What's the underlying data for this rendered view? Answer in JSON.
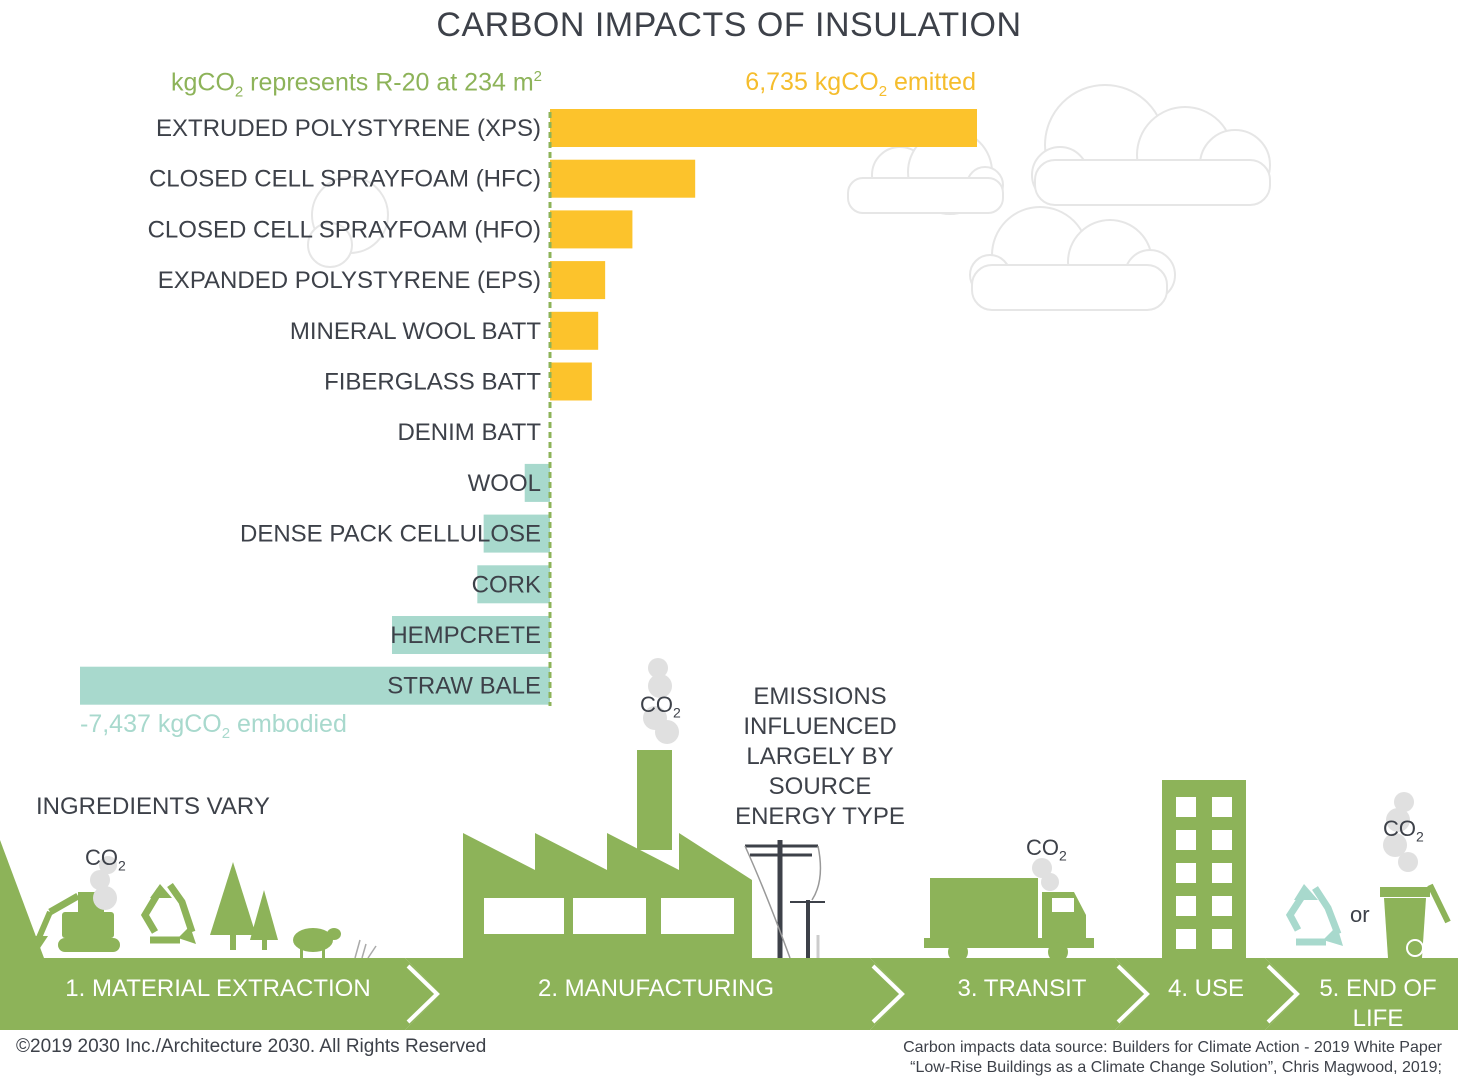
{
  "title": "CARBON IMPACTS OF INSULATION",
  "notes": {
    "left_prefix": "kgCO",
    "left_sub": "2",
    "left_mid": " represents R-20 at 234 m",
    "left_sup": "2",
    "right_prefix": "6,735 kgCO",
    "right_sub": "2",
    "right_suffix": " emitted",
    "bottom_prefix": "-7,437 kgCO",
    "bottom_sub": "2",
    "bottom_suffix": " embodied"
  },
  "colors": {
    "emitted": "#fcc32c",
    "embodied": "#a8d9cd",
    "green": "#8db359",
    "text": "#3d4149",
    "cloud": "#eeeeee"
  },
  "chart_data": {
    "type": "bar",
    "orientation": "horizontal",
    "categories": [
      "EXTRUDED POLYSTYRENE (XPS)",
      "CLOSED CELL SPRAYFOAM (HFC)",
      "CLOSED CELL SPRAYFOAM (HFO)",
      "EXPANDED POLYSTYRENE (EPS)",
      "MINERAL WOOL BATT",
      "FIBERGLASS BATT",
      "DENIM BATT",
      "WOOL",
      "DENSE PACK CELLULOSE",
      "CORK",
      "HEMPCRETE",
      "STRAW BALE"
    ],
    "values": [
      6735,
      2290,
      1300,
      870,
      760,
      660,
      0,
      -400,
      -1050,
      -1150,
      -2500,
      -7437
    ],
    "unit": "kgCO2",
    "xlim": [
      -7437,
      6735
    ],
    "grid": false,
    "legend": "none"
  },
  "lifecycle": {
    "ingredients": "INGREDIENTS VARY",
    "emissions": "EMISSIONS INFLUENCED LARGELY BY SOURCE ENERGY TYPE",
    "co2_main": "CO",
    "co2_sub": "2",
    "or": "or",
    "stages": [
      "1. MATERIAL EXTRACTION",
      "2. MANUFACTURING",
      "3. TRANSIT",
      "4. USE",
      "5. END OF",
      "LIFE"
    ]
  },
  "icons": [
    "excavator-icon",
    "recycle-icon",
    "tree-icon",
    "sheep-icon",
    "factory-icon",
    "power-pole-icon",
    "truck-icon",
    "building-icon",
    "trash-bin-icon",
    "cloud-icon",
    "smoke-icon"
  ],
  "footer": {
    "copyright": "©2019 2030 Inc./Architecture 2030. All Rights Reserved",
    "source_line1": "Carbon impacts data source: Builders for Climate Action - 2019 White Paper",
    "source_line2": "“Low-Rise Buildings as a Climate Change Solution”, Chris Magwood, 2019;"
  }
}
